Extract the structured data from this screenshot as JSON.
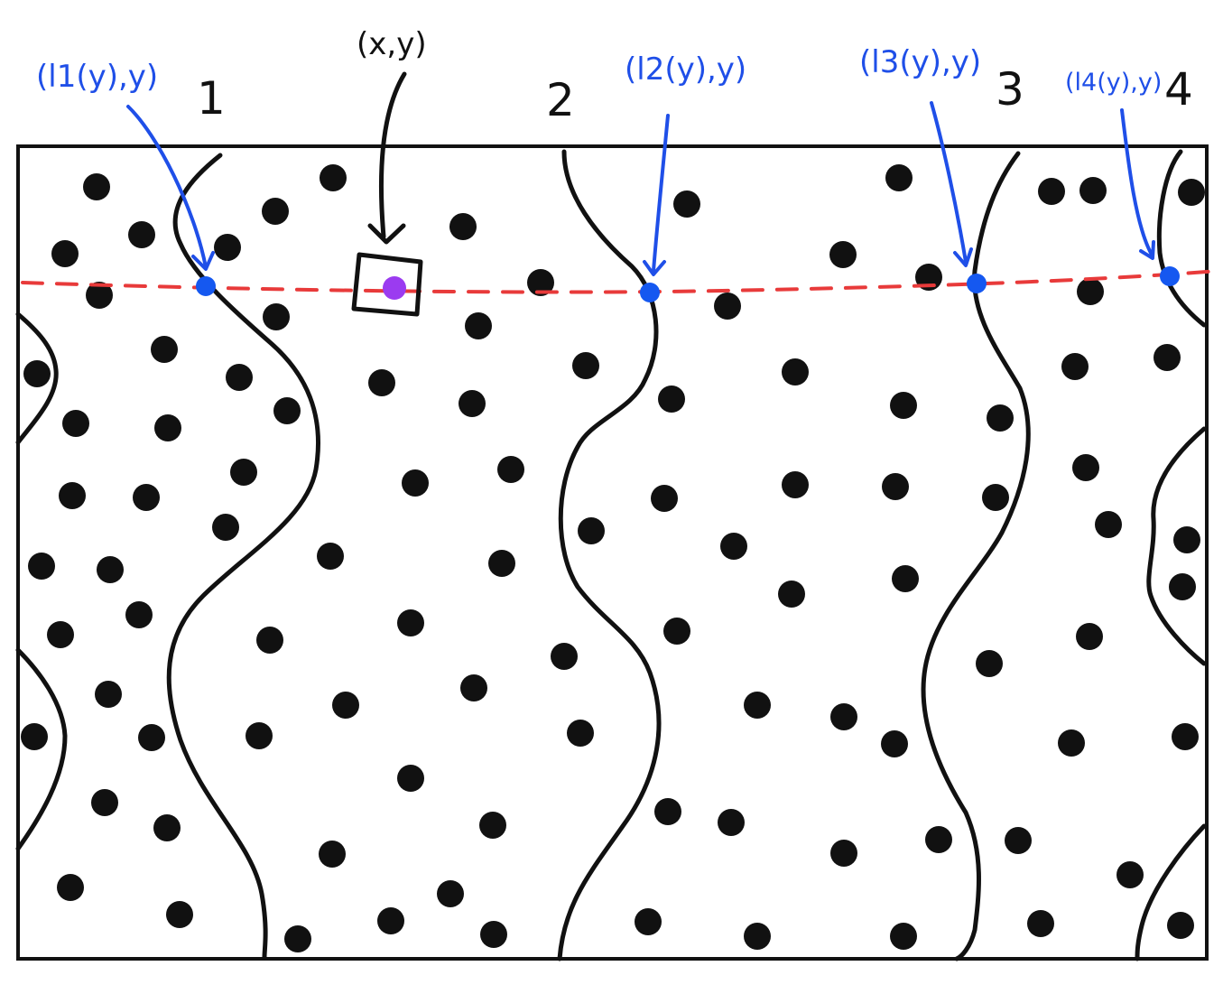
{
  "colors": {
    "ink": "#111111",
    "blue": "#1f4fe8",
    "point": "#1558f0",
    "purple": "#9b3bf0",
    "dashed_line": "#e83a3a"
  },
  "labels": {
    "query_point": "(x,y)",
    "curve_1_number": "1",
    "curve_2_number": "2",
    "curve_3_number": "3",
    "curve_4_number": "4",
    "curve_1_point": "(l1(y),y)",
    "curve_2_point": "(l2(y),y)",
    "curve_3_point": "(l3(y),y)",
    "curve_4_point": "(l4(y),y)"
  }
}
